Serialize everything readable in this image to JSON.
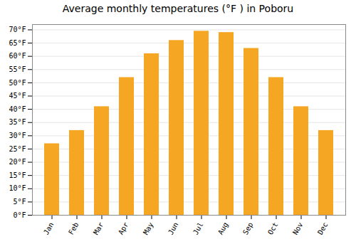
{
  "chart_data": {
    "type": "bar",
    "title": "Average monthly temperatures (°F ) in Poboru",
    "categories": [
      "Jan",
      "Feb",
      "Mar",
      "Apr",
      "May",
      "Jun",
      "Jul",
      "Aug",
      "Sep",
      "Oct",
      "Nov",
      "Dec"
    ],
    "values": [
      27,
      32,
      41,
      52,
      61,
      66,
      69.5,
      69,
      63,
      52,
      41,
      32
    ],
    "color": "#F5A623",
    "ylim": [
      0,
      72
    ],
    "yticks": [
      {
        "value": 0,
        "label": "0°F"
      },
      {
        "value": 5,
        "label": "5°F"
      },
      {
        "value": 10,
        "label": "10°F"
      },
      {
        "value": 15,
        "label": "15°F"
      },
      {
        "value": 20,
        "label": "20°F"
      },
      {
        "value": 25,
        "label": "25°F"
      },
      {
        "value": 30,
        "label": "30°F"
      },
      {
        "value": 35,
        "label": "35°F"
      },
      {
        "value": 40,
        "label": "40°F"
      },
      {
        "value": 45,
        "label": "45°F"
      },
      {
        "value": 50,
        "label": "50°F"
      },
      {
        "value": 55,
        "label": "55°F"
      },
      {
        "value": 60,
        "label": "60°F"
      },
      {
        "value": 65,
        "label": "65°F"
      },
      {
        "value": 70,
        "label": "70°F"
      }
    ],
    "grid": true
  }
}
